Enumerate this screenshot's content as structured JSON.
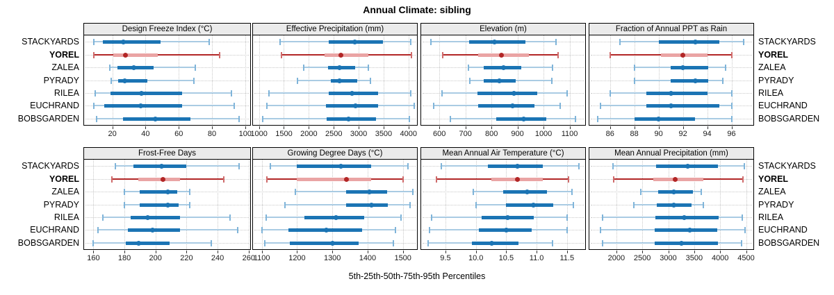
{
  "colors": {
    "blue": "#1b74b4",
    "blue_light": "#a9cbe3",
    "blue_cap": "#7fb4d9",
    "red": "#b22626",
    "red_light": "#eaa4a4",
    "red_cap": "#cf6b6b",
    "grid": "#c8c8c8",
    "strip_bg": "#ebebeb",
    "border": "#000000"
  },
  "chart_data": {
    "type": "dotplot",
    "title": "Annual Climate: sibling",
    "caption": "5th-25th-50th-75th-95th Percentiles",
    "layout": {
      "rows": 2,
      "cols": 4,
      "grid": "dotted",
      "legend_position": "none"
    },
    "percentiles": [
      5,
      25,
      50,
      75,
      95
    ],
    "categories": [
      "STACKYARDS",
      "YOREL",
      "ZALEA",
      "PYRADY",
      "RILEA",
      "EUCHRAND",
      "BOBSGARDEN"
    ],
    "highlight": "YOREL",
    "panels": [
      {
        "title": "Design Freeze Index (°C)",
        "xlim": [
          3,
          103
        ],
        "ticks": [
          20,
          40,
          60,
          80,
          100
        ],
        "tick_labels": [
          "20",
          "40",
          "60",
          "80",
          "100"
        ],
        "values": [
          [
            9,
            14.5,
            26.5,
            49,
            78.5
          ],
          [
            9,
            20.5,
            28,
            47.5,
            84.5
          ],
          [
            18.5,
            23,
            33,
            45,
            70
          ],
          [
            19.5,
            23.5,
            27.5,
            41,
            69
          ],
          [
            9.5,
            19,
            37.5,
            62,
            91.5
          ],
          [
            9,
            15,
            37,
            62,
            93.5
          ],
          [
            10.5,
            26.5,
            46,
            67,
            96.5
          ]
        ]
      },
      {
        "title": "Effective Precipitation (mm)",
        "xlim": [
          880,
          4170
        ],
        "ticks": [
          1000,
          1500,
          2000,
          2500,
          3000,
          3500,
          4000
        ],
        "tick_labels": [
          "1000",
          "1500",
          "2000",
          "2500",
          "3000",
          "3500",
          "4000"
        ],
        "values": [
          [
            1430,
            2400,
            2920,
            3480,
            4040
          ],
          [
            1450,
            2310,
            2645,
            3200,
            4065
          ],
          [
            1900,
            2390,
            2610,
            2930,
            3200
          ],
          [
            1775,
            2440,
            2615,
            2965,
            3230
          ],
          [
            1200,
            2400,
            2860,
            3395,
            4040
          ],
          [
            1160,
            2340,
            2940,
            3390,
            4110
          ],
          [
            1075,
            2360,
            2790,
            3350,
            4020
          ]
        ]
      },
      {
        "title": "Elevation (m)",
        "xlim": [
          530,
          1160
        ],
        "ticks": [
          600,
          700,
          800,
          900,
          1000,
          1100
        ],
        "tick_labels": [
          "600",
          "700",
          "800",
          "900",
          "1000",
          "1100"
        ],
        "values": [
          [
            567,
            714,
            812,
            931,
            1049
          ],
          [
            613,
            750,
            838,
            944,
            1056
          ],
          [
            712,
            770,
            845,
            915,
            1035
          ],
          [
            718,
            770,
            830,
            893,
            1032
          ],
          [
            609,
            746,
            886,
            977,
            1091
          ],
          [
            577,
            748,
            880,
            966,
            1064
          ],
          [
            641,
            818,
            925,
            1010,
            1122
          ]
        ]
      },
      {
        "title": "Fraction of Annual PPT as Rain",
        "xlim": [
          84.3,
          97.8
        ],
        "ticks": [
          86,
          88,
          90,
          92,
          94,
          96
        ],
        "tick_labels": [
          "86",
          "88",
          "90",
          "92",
          "94",
          "96"
        ],
        "values": [
          [
            86.8,
            90,
            93,
            95,
            97
          ],
          [
            86,
            90.2,
            92,
            94,
            96
          ],
          [
            88,
            91,
            92,
            94.1,
            95.5
          ],
          [
            88,
            91,
            93,
            94.1,
            95.3
          ],
          [
            86,
            89,
            91,
            94,
            96
          ],
          [
            85.2,
            89,
            91,
            95,
            96
          ],
          [
            85,
            88,
            90,
            93,
            96
          ]
        ]
      },
      {
        "title": "Frost-Free Days",
        "xlim": [
          154,
          261
        ],
        "ticks": [
          160,
          180,
          200,
          220,
          240,
          260
        ],
        "tick_labels": [
          "160",
          "180",
          "200",
          "220",
          "240",
          "260"
        ],
        "values": [
          [
            174,
            186,
            204,
            220,
            254
          ],
          [
            172,
            189,
            205,
            216,
            244
          ],
          [
            180,
            190,
            208,
            214,
            222
          ],
          [
            180,
            190,
            208,
            215,
            222
          ],
          [
            166,
            184,
            195,
            216,
            248
          ],
          [
            163,
            182,
            198,
            216,
            253
          ],
          [
            160,
            181,
            189,
            209,
            236
          ]
        ]
      },
      {
        "title": "Growing Degree Days (°C)",
        "xlim": [
          1075,
          1540
        ],
        "ticks": [
          1100,
          1200,
          1300,
          1400,
          1500
        ],
        "tick_labels": [
          "1100",
          "1200",
          "1300",
          "1400",
          "1500"
        ],
        "values": [
          [
            1125,
            1200,
            1325,
            1410,
            1515
          ],
          [
            1114,
            1200,
            1340,
            1410,
            1500
          ],
          [
            1195,
            1340,
            1405,
            1455,
            1528
          ],
          [
            1165,
            1340,
            1410,
            1458,
            1520
          ],
          [
            1112,
            1220,
            1310,
            1390,
            1495
          ],
          [
            1100,
            1175,
            1283,
            1385,
            1478
          ],
          [
            1108,
            1180,
            1300,
            1375,
            1473
          ]
        ]
      },
      {
        "title": "Mean Annual Air Temperature (°C)",
        "xlim": [
          9.1,
          11.8
        ],
        "ticks": [
          9.5,
          10.0,
          10.5,
          11.0,
          11.5
        ],
        "tick_labels": [
          "9.5",
          "10.0",
          "10.5",
          "11.0",
          "11.5"
        ],
        "values": [
          [
            9.43,
            10.2,
            10.68,
            11.1,
            11.7
          ],
          [
            9.35,
            10.25,
            10.68,
            11.1,
            11.52
          ],
          [
            9.96,
            10.45,
            10.85,
            11.17,
            11.58
          ],
          [
            10.0,
            10.5,
            10.95,
            11.27,
            11.6
          ],
          [
            9.27,
            10.1,
            10.53,
            10.95,
            11.5
          ],
          [
            9.24,
            10.05,
            10.5,
            10.92,
            11.5
          ],
          [
            9.22,
            9.93,
            10.26,
            10.7,
            11.26
          ]
        ]
      },
      {
        "title": "Mean Annual Precipitation (mm)",
        "xlim": [
          1480,
          4640
        ],
        "ticks": [
          2000,
          2500,
          3000,
          3500,
          4000,
          4500
        ],
        "tick_labels": [
          "2000",
          "2500",
          "3000",
          "3500",
          "4000",
          "4500"
        ],
        "values": [
          [
            1940,
            2770,
            3370,
            3960,
            4470
          ],
          [
            1955,
            2710,
            3130,
            3670,
            4440
          ],
          [
            2475,
            2805,
            3105,
            3470,
            3640
          ],
          [
            2340,
            2785,
            3105,
            3455,
            3670
          ],
          [
            1740,
            2750,
            3305,
            3975,
            4430
          ],
          [
            1700,
            2740,
            3415,
            3945,
            4480
          ],
          [
            1730,
            2740,
            3250,
            3955,
            4410
          ]
        ]
      }
    ]
  }
}
